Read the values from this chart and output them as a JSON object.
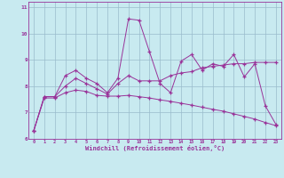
{
  "xlabel": "Windchill (Refroidissement éolien,°C)",
  "bg_color": "#c8eaf0",
  "line_color": "#993399",
  "grid_color": "#99bbcc",
  "xlim": [
    -0.5,
    23.5
  ],
  "ylim": [
    6.0,
    11.2
  ],
  "yticks": [
    6,
    7,
    8,
    9,
    10,
    11
  ],
  "xticks": [
    0,
    1,
    2,
    3,
    4,
    5,
    6,
    7,
    8,
    9,
    10,
    11,
    12,
    13,
    14,
    15,
    16,
    17,
    18,
    19,
    20,
    21,
    22,
    23
  ],
  "line1_x": [
    0,
    1,
    2,
    3,
    4,
    5,
    6,
    7,
    8,
    9,
    10,
    11,
    12,
    13,
    14,
    15,
    16,
    17,
    18,
    19,
    20,
    21,
    22,
    23
  ],
  "line1_y": [
    6.3,
    7.6,
    7.6,
    8.4,
    8.6,
    8.3,
    8.1,
    7.75,
    8.3,
    10.55,
    10.5,
    9.3,
    8.1,
    7.75,
    8.95,
    9.2,
    8.6,
    8.85,
    8.75,
    9.2,
    8.35,
    8.85,
    7.25,
    6.55
  ],
  "line2_x": [
    0,
    1,
    2,
    3,
    4,
    5,
    6,
    7,
    8,
    9,
    10,
    11,
    12,
    13,
    14,
    15,
    16,
    17,
    18,
    19,
    20,
    21,
    22,
    23
  ],
  "line2_y": [
    6.3,
    7.6,
    7.6,
    8.0,
    8.3,
    8.1,
    7.9,
    7.7,
    8.1,
    8.4,
    8.2,
    8.2,
    8.2,
    8.4,
    8.5,
    8.55,
    8.7,
    8.75,
    8.8,
    8.85,
    8.85,
    8.9,
    8.9,
    8.9
  ],
  "line3_x": [
    0,
    1,
    2,
    3,
    4,
    5,
    6,
    7,
    8,
    9,
    10,
    11,
    12,
    13,
    14,
    15,
    16,
    17,
    18,
    19,
    20,
    21,
    22,
    23
  ],
  "line3_y": [
    6.3,
    7.55,
    7.55,
    7.75,
    7.85,
    7.8,
    7.65,
    7.62,
    7.62,
    7.65,
    7.6,
    7.55,
    7.48,
    7.42,
    7.35,
    7.28,
    7.2,
    7.12,
    7.05,
    6.95,
    6.85,
    6.75,
    6.62,
    6.5
  ]
}
